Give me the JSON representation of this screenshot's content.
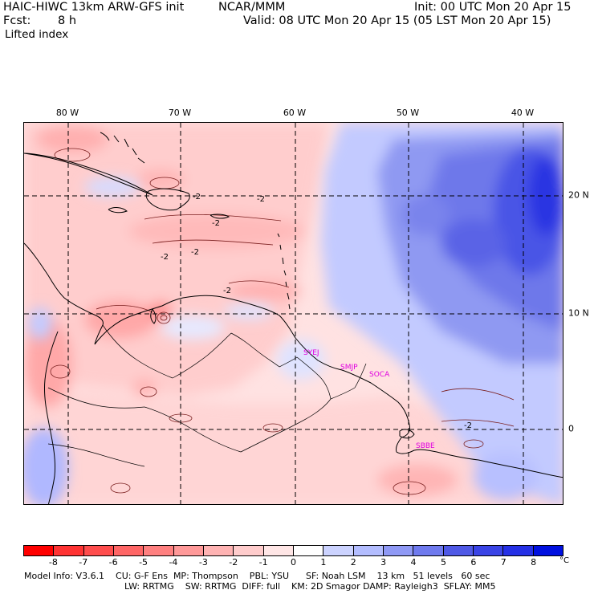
{
  "header": {
    "model": "HAIC-HIWC 13km ARW-GFS init",
    "org": "NCAR/MMM",
    "init": "Init: 00 UTC Mon 20 Apr 15",
    "fcst_label": "Fcst:",
    "fcst_value": "8 h",
    "valid": "Valid: 08 UTC Mon 20 Apr 15 (05 LST Mon 20 Apr 15)",
    "field": "Lifted index"
  },
  "map": {
    "lon_labels": [
      "80 W",
      "70 W",
      "60 W",
      "50 W",
      "40 W"
    ],
    "lat_labels": [
      "20 N",
      "10 N",
      "0"
    ],
    "stations": [
      "SYEJ",
      "SMJP",
      "SOCA",
      "SBBE"
    ],
    "contour_labels": [
      "-2",
      "-2",
      "-2",
      "-2",
      "-2",
      "-2",
      "-2"
    ],
    "colors": {
      "land_outline": "#000000",
      "grid": "#000000",
      "station": "#e000e0"
    }
  },
  "colorbar": {
    "ticks": [
      "-8",
      "-7",
      "-6",
      "-5",
      "-4",
      "-3",
      "-2",
      "-1",
      "0",
      "1",
      "2",
      "3",
      "4",
      "5",
      "6",
      "7",
      "8"
    ],
    "unit": "°C",
    "colors": [
      "#ff0000",
      "#ff3333",
      "#ff4d4d",
      "#ff6666",
      "#ff8080",
      "#ff9999",
      "#ffb3b3",
      "#ffcccc",
      "#ffe6e6",
      "#ffffff",
      "#ccd3ff",
      "#b3bdff",
      "#8f99f5",
      "#6f7aee",
      "#4f59e6",
      "#3a44e6",
      "#2530e6",
      "#0010e0"
    ]
  },
  "model_info": {
    "line1": "Model Info: V3.6.1    CU: G-F Ens  MP: Thompson    PBL: YSU      SF: Noah LSM    13 km   51 levels   60 sec",
    "line2": "LW: RRTMG    SW: RRTMG  DIFF: full    KM: 2D Smagor DAMP: Rayleigh3  SFLAY: MM5"
  }
}
